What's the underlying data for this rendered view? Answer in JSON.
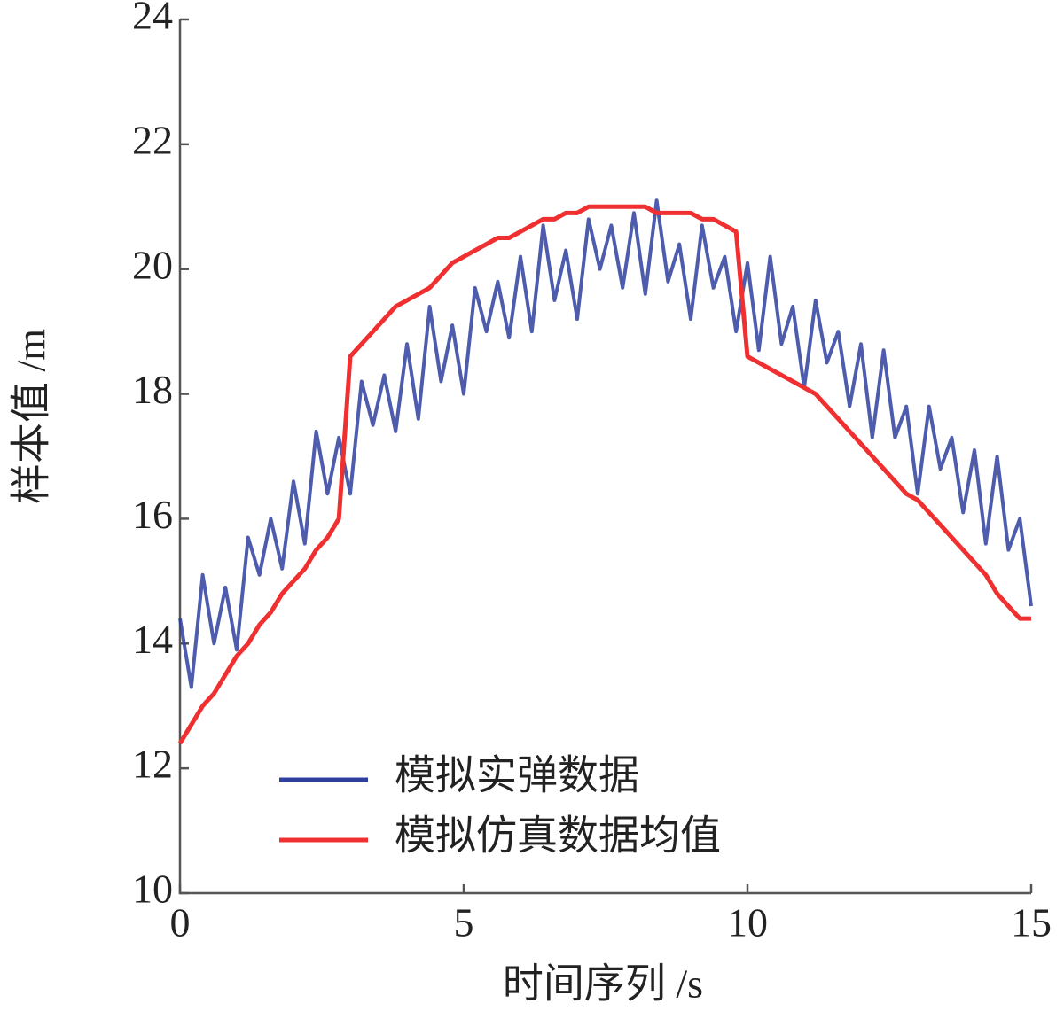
{
  "chart_data": {
    "type": "line",
    "xlabel": "时间序列 /s",
    "ylabel": "样本值 /m",
    "x": [
      0,
      0.2,
      0.4,
      0.6,
      0.8,
      1,
      1.2,
      1.4,
      1.6,
      1.8,
      2,
      2.2,
      2.4,
      2.6,
      2.8,
      3,
      3.2,
      3.4,
      3.6,
      3.8,
      4,
      4.2,
      4.4,
      4.6,
      4.8,
      5,
      5.2,
      5.4,
      5.6,
      5.8,
      6,
      6.2,
      6.4,
      6.6,
      6.8,
      7,
      7.2,
      7.4,
      7.6,
      7.8,
      8,
      8.2,
      8.4,
      8.6,
      8.8,
      9,
      9.2,
      9.4,
      9.6,
      9.8,
      10,
      10.2,
      10.4,
      10.6,
      10.8,
      11,
      11.2,
      11.4,
      11.6,
      11.8,
      12,
      12.2,
      12.4,
      12.6,
      12.8,
      13,
      13.2,
      13.4,
      13.6,
      13.8,
      14,
      14.2,
      14.4,
      14.6,
      14.8,
      15
    ],
    "series": [
      {
        "name": "模拟实弹数据",
        "color": "#2e3f9e",
        "values": [
          14.4,
          13.3,
          15.1,
          14.0,
          14.9,
          13.9,
          15.7,
          15.1,
          16.0,
          15.2,
          16.6,
          15.6,
          17.4,
          16.4,
          17.3,
          16.4,
          18.2,
          17.5,
          18.3,
          17.4,
          18.8,
          17.6,
          19.4,
          18.2,
          19.1,
          18.0,
          19.7,
          19.0,
          19.8,
          18.9,
          20.2,
          19.0,
          20.7,
          19.5,
          20.3,
          19.2,
          20.8,
          20.0,
          20.7,
          19.7,
          20.9,
          19.6,
          21.1,
          19.8,
          20.4,
          19.2,
          20.7,
          19.7,
          20.2,
          19.0,
          20.1,
          18.7,
          20.2,
          18.8,
          19.4,
          18.1,
          19.5,
          18.5,
          19.0,
          17.8,
          18.8,
          17.3,
          18.7,
          17.3,
          17.8,
          16.4,
          17.8,
          16.8,
          17.3,
          16.1,
          17.1,
          15.6,
          17.0,
          15.5,
          16.0,
          14.6
        ]
      },
      {
        "name": "模拟仿真数据均值",
        "color": "#f03030",
        "values": [
          12.4,
          12.7,
          13.0,
          13.2,
          13.5,
          13.8,
          14.0,
          14.3,
          14.5,
          14.8,
          15.0,
          15.2,
          15.5,
          15.7,
          16.0,
          18.6,
          18.8,
          19.0,
          19.2,
          19.4,
          19.5,
          19.6,
          19.7,
          19.9,
          20.1,
          20.2,
          20.3,
          20.4,
          20.5,
          20.5,
          20.6,
          20.7,
          20.8,
          20.8,
          20.9,
          20.9,
          21.0,
          21.0,
          21.0,
          21.0,
          21.0,
          21.0,
          20.9,
          20.9,
          20.9,
          20.9,
          20.8,
          20.8,
          20.7,
          20.6,
          18.6,
          18.5,
          18.4,
          18.3,
          18.2,
          18.1,
          18.0,
          17.8,
          17.6,
          17.4,
          17.2,
          17.0,
          16.8,
          16.6,
          16.4,
          16.3,
          16.1,
          15.9,
          15.7,
          15.5,
          15.3,
          15.1,
          14.8,
          14.6,
          14.4,
          14.4
        ]
      }
    ],
    "xlim": [
      0,
      15
    ],
    "xticks": [
      0,
      5,
      10,
      15
    ],
    "ylim": [
      10,
      24
    ],
    "yticks": [
      10,
      12,
      14,
      16,
      18,
      20,
      22,
      24
    ],
    "legend": "lower center"
  }
}
